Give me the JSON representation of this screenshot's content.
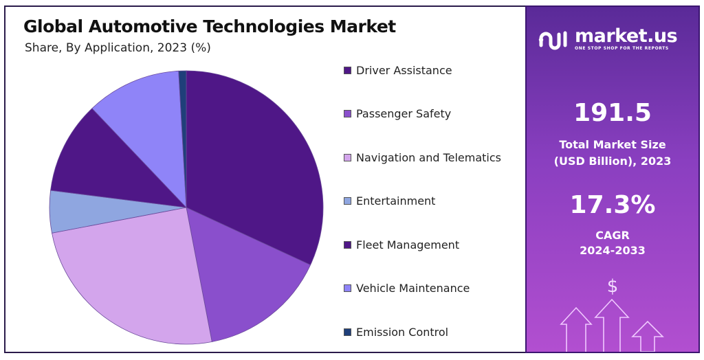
{
  "chart_data": {
    "type": "pie",
    "title": "Global Automotive Technologies Market",
    "subtitle": "Share, By Application, 2023 (%)",
    "start_angle": "12 o'clock",
    "direction": "clockwise",
    "legend_position": "right",
    "categories": [
      "Driver Assistance",
      "Passenger Safety",
      "Navigation and Telematics",
      "Entertainment",
      "Fleet Management",
      "Vehicle Maintenance",
      "Emission Control"
    ],
    "values": [
      31.9,
      15.1,
      25.0,
      5.0,
      10.9,
      11.2,
      0.9
    ],
    "colors": [
      "#4f1787",
      "#8a4fcc",
      "#d3a5ec",
      "#8fa6e0",
      "#4f1787",
      "#8f84f8",
      "#1f3f7a"
    ]
  },
  "panel": {
    "logo_text": "market.us",
    "logo_tagline": "ONE STOP SHOP FOR THE REPORTS",
    "market_size_value": "191.5",
    "market_size_label_1": "Total Market Size",
    "market_size_label_2": "(USD Billion), 2023",
    "cagr_value": "17.3%",
    "cagr_label_1": "CAGR",
    "cagr_label_2": "2024-2033",
    "dollar_symbol": "$"
  }
}
